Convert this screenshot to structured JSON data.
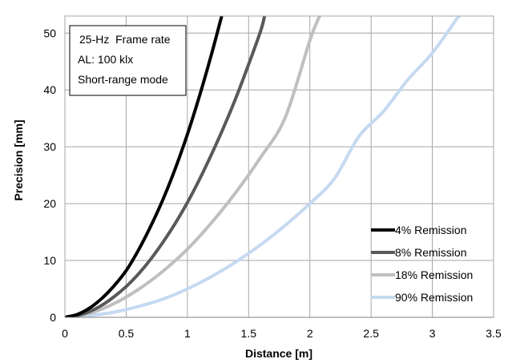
{
  "chart_data": {
    "type": "line",
    "title": "",
    "xlabel": "Distance [m]",
    "ylabel": "Precision [mm]",
    "xlim": [
      0,
      3.5
    ],
    "ylim": [
      0,
      53
    ],
    "xticks": [
      0,
      0.5,
      1,
      1.5,
      2,
      2.5,
      3,
      3.5
    ],
    "xtick_labels": [
      "0",
      "0.5",
      "1",
      "1.5",
      "2",
      "2.5",
      "3",
      "3.5"
    ],
    "yticks": [
      0,
      10,
      20,
      30,
      40,
      50
    ],
    "ytick_labels": [
      "0",
      "10",
      "20",
      "30",
      "40",
      "50"
    ],
    "grid": true,
    "legend_position": "bottom-right",
    "annotation": [
      "25-Hz  Frame rate",
      "AL: 100 klx",
      "Short-range mode"
    ],
    "series": [
      {
        "name": "4% Remission",
        "color": "#000000",
        "x": [
          0,
          0.1,
          0.2,
          0.3,
          0.4,
          0.5,
          0.6,
          0.7,
          0.8,
          0.9,
          1.0,
          1.1,
          1.2,
          1.28
        ],
        "y": [
          0,
          0.5,
          1.6,
          3.3,
          5.5,
          8.2,
          11.8,
          16.0,
          20.7,
          26.1,
          32.2,
          39.0,
          46.5,
          53
        ]
      },
      {
        "name": "8% Remission",
        "color": "#595959",
        "x": [
          0,
          0.1,
          0.2,
          0.3,
          0.4,
          0.5,
          0.6,
          0.7,
          0.8,
          0.9,
          1.0,
          1.1,
          1.2,
          1.3,
          1.4,
          1.5,
          1.6,
          1.63
        ],
        "y": [
          0,
          0.3,
          1.0,
          2.1,
          3.6,
          5.4,
          7.6,
          10.2,
          13.2,
          16.5,
          20.2,
          24.3,
          28.8,
          33.6,
          38.8,
          44.5,
          50.5,
          53
        ]
      },
      {
        "name": "18% Remission",
        "color": "#bfbfbf",
        "x": [
          0,
          0.2,
          0.4,
          0.6,
          0.8,
          1.0,
          1.2,
          1.4,
          1.6,
          1.8,
          2.0,
          2.08
        ],
        "y": [
          0,
          0.7,
          2.4,
          4.9,
          8.1,
          12.0,
          16.7,
          22.1,
          28.2,
          35.2,
          48.7,
          53
        ]
      },
      {
        "name": "90% Remission",
        "color": "#c5d9f1",
        "x": [
          0,
          0.2,
          0.4,
          0.6,
          0.8,
          1.0,
          1.2,
          1.4,
          1.6,
          1.8,
          2.0,
          2.2,
          2.4,
          2.6,
          2.8,
          3.0,
          3.2,
          3.22
        ],
        "y": [
          0,
          0.3,
          0.9,
          1.9,
          3.2,
          5.0,
          7.2,
          9.8,
          12.8,
          16.2,
          20.0,
          24.4,
          31.8,
          36.2,
          41.8,
          46.5,
          52.5,
          53
        ]
      }
    ]
  }
}
